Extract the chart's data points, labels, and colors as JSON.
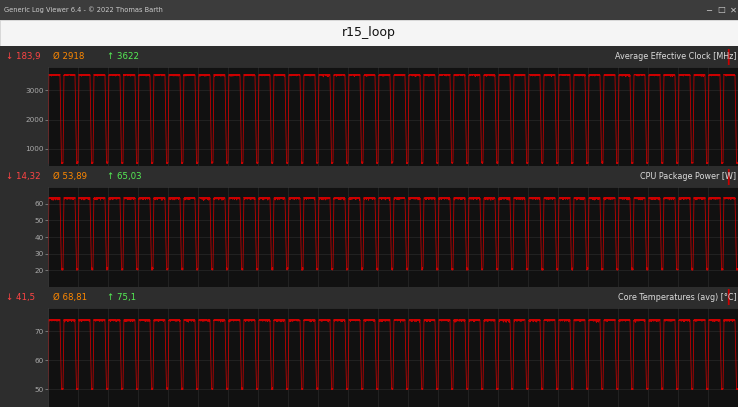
{
  "title": "r15_loop",
  "window_title": "Generic Log Viewer 6.4 - © 2022 Thomas Barth",
  "outer_bg": "#2d2d2d",
  "titlebar_bg": "#f0f0f0",
  "chrome_bg": "#c8c8c8",
  "plot_bg": "#111111",
  "line_color": "#cc0000",
  "grid_color": "#2a2a2a",
  "tick_color": "#aaaaaa",
  "panels": [
    {
      "label": "Average Effective Clock [MHz]",
      "ylim": [
        400,
        3800
      ],
      "yticks": [
        1000,
        2000,
        3000
      ],
      "stat_min": "↓ 183,9",
      "stat_avg": "Ø 2918",
      "stat_max": "↑ 3622",
      "stat_colors": [
        "#ff4444",
        "#ff8800",
        "#55ee55"
      ],
      "base_val": 500,
      "peak_val": 3550,
      "noise_high": 80,
      "noise_low": 100
    },
    {
      "label": "CPU Package Power [W]",
      "ylim": [
        10,
        70
      ],
      "yticks": [
        20,
        30,
        40,
        50,
        60
      ],
      "stat_min": "↓ 14,32",
      "stat_avg": "Ø 53,89",
      "stat_max": "↑ 65,03",
      "stat_colors": [
        "#ff4444",
        "#ff8800",
        "#55ee55"
      ],
      "base_val": 20,
      "peak_val": 64,
      "noise_high": 2,
      "noise_low": 3
    },
    {
      "label": "Core Temperatures (avg) [°C]",
      "ylim": [
        44,
        78
      ],
      "yticks": [
        50,
        60,
        70
      ],
      "stat_min": "↓ 41,5",
      "stat_avg": "Ø 68,81",
      "stat_max": "↑ 75,1",
      "stat_colors": [
        "#ff4444",
        "#ff8800",
        "#55ee55"
      ],
      "base_val": 50,
      "peak_val": 74,
      "noise_high": 1,
      "noise_low": 1
    }
  ],
  "total_seconds": 690,
  "num_cycles": 46,
  "x_tick_interval": 30
}
